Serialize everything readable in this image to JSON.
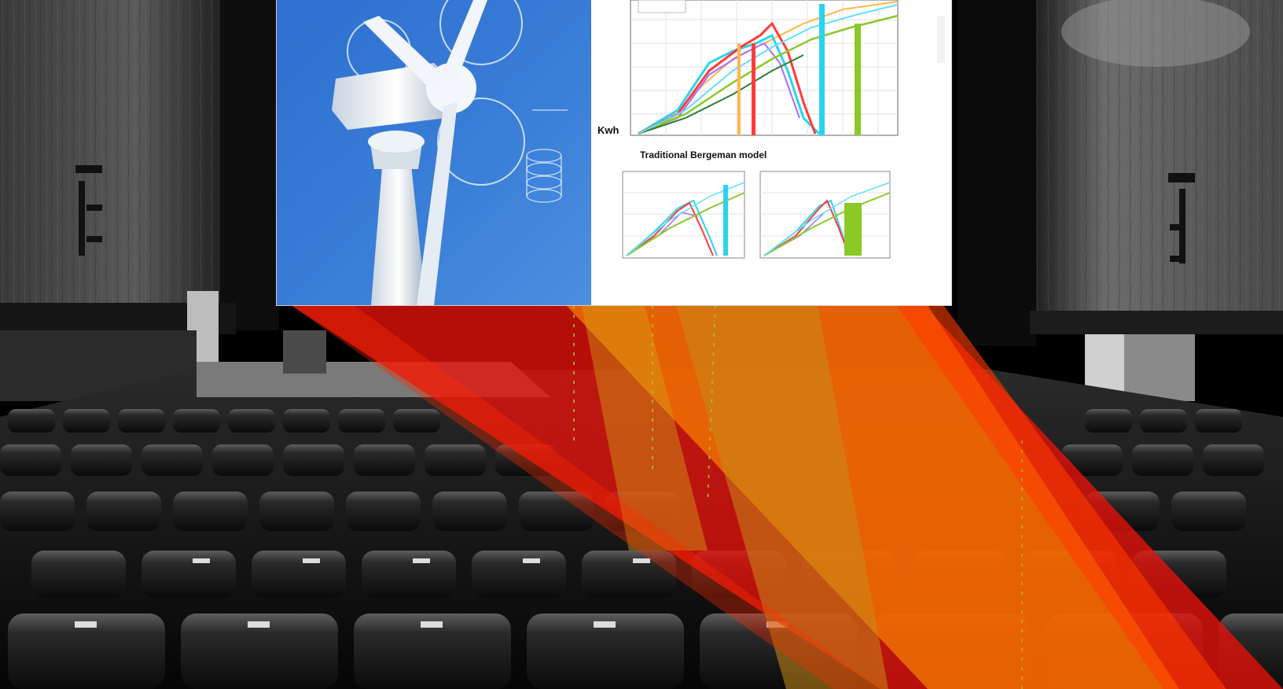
{
  "screen": {
    "axis_unit_label": "Kwh",
    "lower_panel_title": "Traditional Bergeman model"
  },
  "colors": {
    "beam_red": "#e8120a",
    "beam_orange": "#f57c00",
    "beam_amber": "#c98a1a",
    "turbine_sky": "#3a7fd8",
    "series": [
      "#ff3b3b",
      "#2ad4f0",
      "#8ac926",
      "#a66cff",
      "#ffb74d",
      "#2e7d32"
    ]
  },
  "icons": [
    "wind-turbine-image",
    "projector-beam",
    "theater-seats"
  ]
}
